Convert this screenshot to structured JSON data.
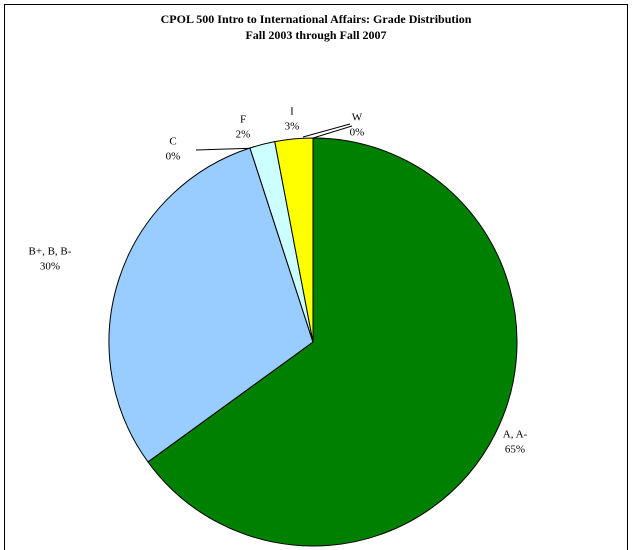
{
  "chart_data": {
    "type": "pie",
    "title": "CPOL 500 Intro to International Affairs: Grade Distribution",
    "subtitle": "Fall 2003 through Fall 2007",
    "categories": [
      "A, A-",
      "B+, B, B-",
      "C",
      "F",
      "I",
      "W"
    ],
    "values": [
      65,
      30,
      0,
      2,
      3,
      0
    ],
    "value_labels": [
      "65%",
      "30%",
      "0%",
      "2%",
      "3%",
      "0%"
    ],
    "colors": [
      "#008000",
      "#99ccff",
      "#ccffff",
      "#ccffff",
      "#ffff00",
      "#ffffff"
    ]
  }
}
